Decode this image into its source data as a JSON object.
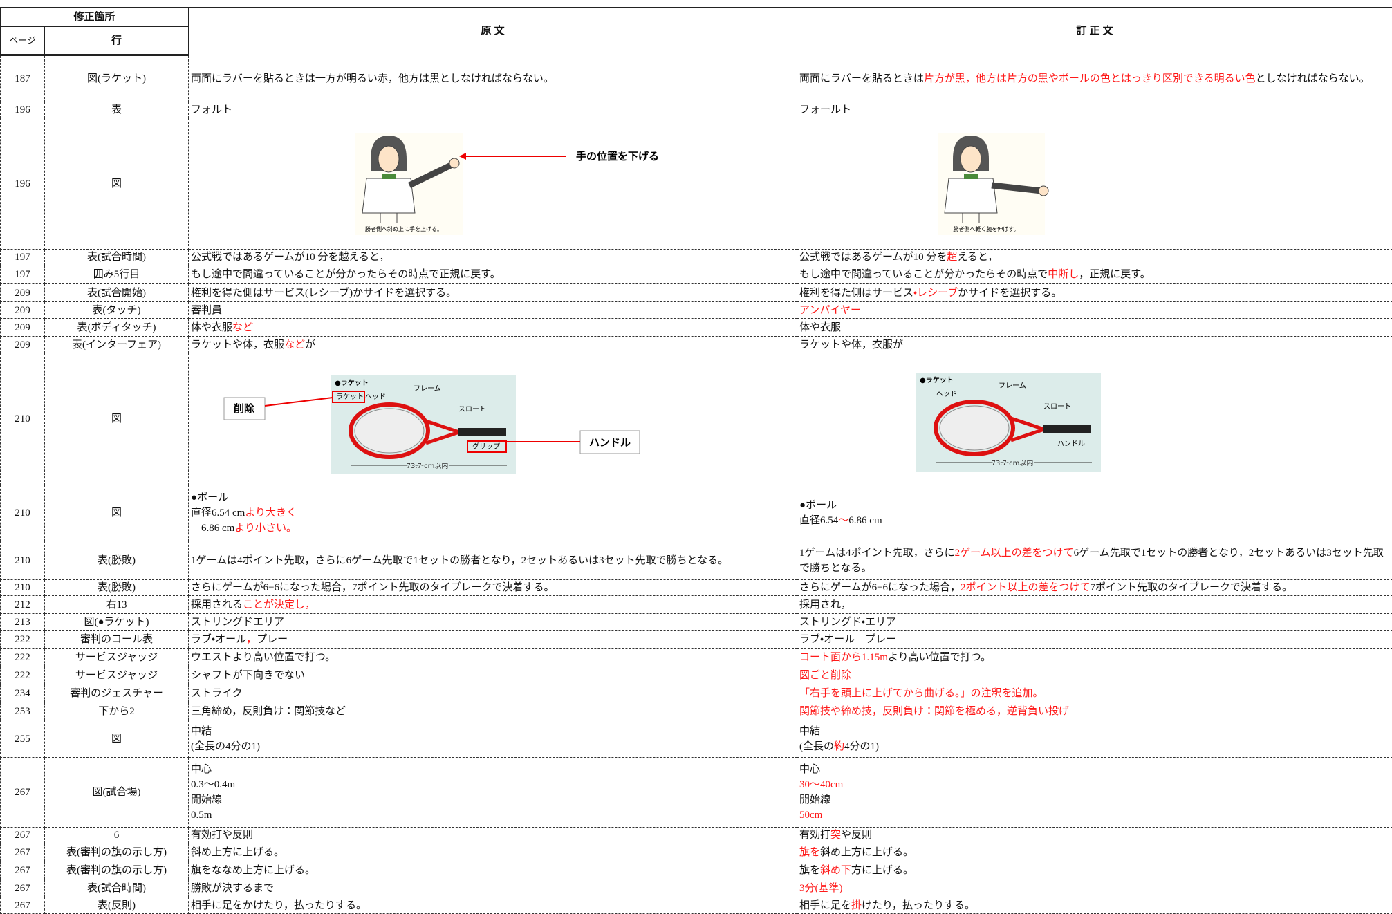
{
  "header": {
    "location": "修正箇所",
    "page": "ページ",
    "line": "行",
    "original": "原 文",
    "corrected": "訂 正 文"
  },
  "rows": [
    {
      "page": "187",
      "line": "図(ラケット)",
      "original": [
        {
          "text": "両面にラバーを貼るときは一方が明るい赤，他方は黒としなければならない。"
        }
      ],
      "corrected": [
        {
          "text": "両面にラバーを貼るときは"
        },
        {
          "text": "片方が黒，他方は片方の黒やボールの色とはっきり区別できる明るい色",
          "color": "#ff1a1a"
        },
        {
          "text": "としなければならない。"
        }
      ]
    },
    {
      "page": "196",
      "line": "表",
      "original": [
        {
          "text": "フォルト"
        }
      ],
      "corrected": [
        {
          "text": "フォールト"
        }
      ]
    },
    {
      "page": "196",
      "line": "図",
      "original": {
        "caption": "勝者側へ斜め上に手を上げる。",
        "callout": "手の位置を下げる"
      },
      "corrected": {
        "caption": "勝者側へ軽く腕を伸ばす。"
      }
    },
    {
      "page": "197",
      "line": "表(試合時間)",
      "original": [
        {
          "text": "公式戦ではあるゲームが10 分を越えると，"
        }
      ],
      "corrected": [
        {
          "text": "公式戦ではあるゲームが10 分を"
        },
        {
          "text": "超",
          "color": "#ff1a1a"
        },
        {
          "text": "えると，"
        }
      ]
    },
    {
      "page": "197",
      "line": "囲み5行目",
      "original": [
        {
          "text": "もし途中で間違っていることが分かったらその時点で正規に戻す。"
        }
      ],
      "corrected": [
        {
          "text": "もし途中で間違っていることが分かったらその時点で"
        },
        {
          "text": "中断し",
          "color": "#ff1a1a"
        },
        {
          "text": "，正規に戻す。"
        }
      ]
    },
    {
      "page": "209",
      "line": "表(試合開始)",
      "original": [
        {
          "text": "権利を得た側はサービス(レシーブ)かサイドを選択する。"
        }
      ],
      "corrected": [
        {
          "text": "権利を得た側はサービス"
        },
        {
          "text": "・レシーブ",
          "color": "#ff1a1a"
        },
        {
          "text": "かサイドを選択する。"
        }
      ]
    },
    {
      "page": "209",
      "line": "表(タッチ)",
      "original": [
        {
          "text": "審判員"
        }
      ],
      "corrected": [
        {
          "text": "アンパイヤー",
          "color": "#ff1a1a"
        }
      ]
    },
    {
      "page": "209",
      "line": "表(ボディタッチ)",
      "original": [
        {
          "text": "体や衣服"
        },
        {
          "text": "など",
          "color": "#ff1a1a"
        }
      ],
      "corrected": [
        {
          "text": "体や衣服"
        }
      ]
    },
    {
      "page": "209",
      "line": "表(インターフェア)",
      "original": [
        {
          "text": "ラケットや体，衣服"
        },
        {
          "text": "など",
          "color": "#ff1a1a"
        },
        {
          "text": "が"
        }
      ],
      "corrected": [
        {
          "text": "ラケットや体，衣服が"
        }
      ]
    },
    {
      "page": "210",
      "line": "図",
      "original": {
        "title": "●ラケット",
        "head_prefix": "ラケット",
        "head": "ヘッド",
        "frame": "フレーム",
        "throat": "スロート",
        "grip": "グリップ",
        "length": "73.7 cm以内",
        "delete_callout": "削除",
        "grip_callout": "ハンドル"
      },
      "corrected": {
        "title": "●ラケット",
        "head": "ヘッド",
        "frame": "フレーム",
        "throat": "スロート",
        "grip": "ハンドル",
        "length": "73.7 cm以内"
      }
    },
    {
      "page": "210",
      "line": "図",
      "original": [
        {
          "text": "●ボール\n直径6.54 cm"
        },
        {
          "text": "より大きく",
          "color": "#ff1a1a"
        },
        {
          "text": "\n　6.86 cm"
        },
        {
          "text": "より小さい。",
          "color": "#ff1a1a"
        }
      ],
      "corrected": [
        {
          "text": "●ボール\n直径6.54"
        },
        {
          "text": "〜",
          "color": "#ff1a1a"
        },
        {
          "text": "6.86 cm"
        }
      ]
    },
    {
      "page": "210",
      "line": "表(勝敗)",
      "original": [
        {
          "text": "1ゲームは4ポイント先取，さらに6ゲーム先取で1セットの勝者となり，2セットあるいは3セット先取で勝ちとなる。"
        }
      ],
      "corrected": [
        {
          "text": "1ゲームは4ポイント先取，さらに"
        },
        {
          "text": "2ゲーム以上の差をつけて",
          "color": "#ff1a1a"
        },
        {
          "text": "6ゲーム先取で1セットの勝者となり，2セットあるいは3セット先取で勝ちとなる。"
        }
      ]
    },
    {
      "page": "210",
      "line": "表(勝敗)",
      "original": [
        {
          "text": "さらにゲームが6−6になった場合，7ポイント先取のタイブレークで決着する。"
        }
      ],
      "corrected": [
        {
          "text": "さらにゲームが6−6になった場合，"
        },
        {
          "text": "2ポイント以上の差をつけて",
          "color": "#ff1a1a"
        },
        {
          "text": "7ポイント先取のタイブレークで決着する。"
        }
      ]
    },
    {
      "page": "212",
      "line": "右13",
      "original": [
        {
          "text": "採用される"
        },
        {
          "text": "ことが決定し，",
          "color": "#ff1a1a"
        }
      ],
      "corrected": [
        {
          "text": "採用され，"
        }
      ]
    },
    {
      "page": "213",
      "line": "図(●ラケット)",
      "original": [
        {
          "text": "ストリングドエリア"
        }
      ],
      "corrected": [
        {
          "text": "ストリングド・エリア"
        }
      ]
    },
    {
      "page": "222",
      "line": "審判のコール表",
      "original": [
        {
          "text": "ラブ・オール"
        },
        {
          "text": "，",
          "color": "#ff1a1a"
        },
        {
          "text": "プレー"
        }
      ],
      "corrected": [
        {
          "text": "ラブ・オール　プレー"
        }
      ]
    },
    {
      "page": "222",
      "line": "サービスジャッジ",
      "original": [
        {
          "text": "ウエストより高い位置で打つ。"
        }
      ],
      "corrected": [
        {
          "text": "コート面から1.15m",
          "color": "#ff1a1a"
        },
        {
          "text": "より高い位置で打つ。"
        }
      ]
    },
    {
      "page": "222",
      "line": "サービスジャッジ",
      "original": [
        {
          "text": "シャフトが下向きでない"
        }
      ],
      "corrected": [
        {
          "text": "図ごと削除",
          "color": "#ff1a1a"
        }
      ]
    },
    {
      "page": "234",
      "line": "審判のジェスチャー",
      "original": [
        {
          "text": "ストライク"
        }
      ],
      "corrected": [
        {
          "text": "「右手を頭上に上げてから曲げる。」の注釈を追加。",
          "color": "#ff1a1a"
        }
      ]
    },
    {
      "page": "253",
      "line": "下から2",
      "original": [
        {
          "text": "三角締め，反則負け：関節技など"
        }
      ],
      "corrected": [
        {
          "text": "関節技や締め技，反則負け：関節を極める，逆背負い投げ",
          "color": "#ff1a1a"
        }
      ]
    },
    {
      "page": "255",
      "line": "図",
      "original": [
        {
          "text": "中結\n(全長の4分の1)"
        }
      ],
      "corrected": [
        {
          "text": "中結\n(全長の"
        },
        {
          "text": "約",
          "color": "#ff1a1a"
        },
        {
          "text": "4分の1)"
        }
      ]
    },
    {
      "page": "267",
      "line": "図(試合場)",
      "original": [
        {
          "text": "中心\n0.3〜0.4m\n開始線\n0.5m"
        }
      ],
      "corrected": [
        {
          "text": "中心\n"
        },
        {
          "text": "30〜40cm",
          "color": "#ff1a1a"
        },
        {
          "text": "\n開始線\n"
        },
        {
          "text": "50cm",
          "color": "#ff1a1a"
        }
      ]
    },
    {
      "page": "267",
      "line": "6",
      "original": [
        {
          "text": "有効打や反則"
        }
      ],
      "corrected": [
        {
          "text": "有効打"
        },
        {
          "text": "突",
          "color": "#ff1a1a"
        },
        {
          "text": "や反則"
        }
      ]
    },
    {
      "page": "267",
      "line": "表(審判の旗の示し方)",
      "original": [
        {
          "text": "斜め上方に上げる。"
        }
      ],
      "corrected": [
        {
          "text": "旗を",
          "color": "#ff1a1a"
        },
        {
          "text": "斜め上方に上げる。"
        }
      ]
    },
    {
      "page": "267",
      "line": "表(審判の旗の示し方)",
      "original": [
        {
          "text": "旗をななめ上方に上げる。"
        }
      ],
      "corrected": [
        {
          "text": "旗を"
        },
        {
          "text": "斜め下",
          "color": "#ff1a1a"
        },
        {
          "text": "方に上げる。"
        }
      ]
    },
    {
      "page": "267",
      "line": "表(試合時間)",
      "original": [
        {
          "text": "勝敗が決するまで"
        }
      ],
      "corrected": [
        {
          "text": "3分(基準)",
          "color": "#ff1a1a"
        }
      ]
    },
    {
      "page": "267",
      "line": "表(反則)",
      "original": [
        {
          "text": "相手に足をかけたり，払ったりする。"
        }
      ],
      "corrected": [
        {
          "text": "相手に足を"
        },
        {
          "text": "掛",
          "color": "#ff1a1a"
        },
        {
          "text": "けたり，払ったりする。"
        }
      ]
    }
  ]
}
